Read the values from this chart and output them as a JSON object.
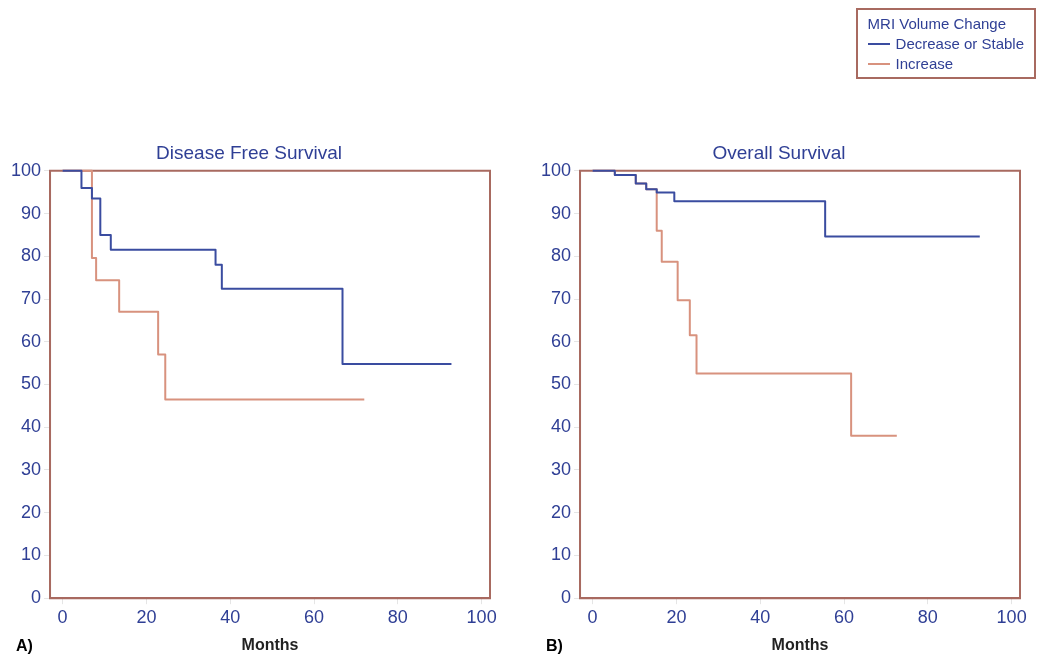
{
  "chart_data": [
    {
      "type": "step",
      "title": "Disease Free Survival",
      "xlabel": "Months",
      "xlim": [
        -3,
        102
      ],
      "xticks": [
        0,
        20,
        40,
        60,
        80,
        100
      ],
      "ylim": [
        0,
        100
      ],
      "yticks": [
        0,
        10,
        20,
        30,
        40,
        50,
        60,
        70,
        80,
        90,
        100
      ],
      "grid": false,
      "legend": "top right",
      "legend_title": "MRI Volume Change",
      "annotations": [
        "A)"
      ],
      "series": [
        {
          "name": "Decrease or Stable",
          "color": "#3a4ca0",
          "x": [
            0,
            4.5,
            7,
            9,
            11.5,
            20.5,
            36.5,
            38,
            66.8,
            92.8
          ],
          "values": [
            100,
            96,
            93.5,
            85,
            81.5,
            81.5,
            78,
            72.4,
            54.8,
            54.8
          ]
        },
        {
          "name": "Increase",
          "color": "#d8927e",
          "x": [
            0,
            7,
            8,
            13.5,
            22.8,
            24.5,
            72
          ],
          "values": [
            100,
            79.6,
            74.4,
            67,
            57,
            46.5,
            46.5
          ]
        }
      ]
    },
    {
      "type": "step",
      "title": "Overall Survival",
      "xlabel": "Months",
      "xlim": [
        -3,
        102
      ],
      "xticks": [
        0,
        20,
        40,
        60,
        80,
        100
      ],
      "ylim": [
        0,
        100
      ],
      "yticks": [
        0,
        10,
        20,
        30,
        40,
        50,
        60,
        70,
        80,
        90,
        100
      ],
      "grid": false,
      "legend": false,
      "annotations": [
        "B)"
      ],
      "series": [
        {
          "color": "#3a4ca0",
          "x": [
            0,
            5.3,
            10.3,
            12.8,
            15.3,
            19.5,
            55.5,
            92.4
          ],
          "values": [
            100,
            99,
            97,
            95.7,
            94.9,
            92.9,
            84.6,
            84.6
          ]
        },
        {
          "color": "#d8927e",
          "x": [
            0,
            5.3,
            10.3,
            12.8,
            15.3,
            16.5,
            20.3,
            23.2,
            24.8,
            61.7,
            72.6
          ],
          "values": [
            100,
            99,
            97,
            95.7,
            86,
            78.7,
            69.7,
            61.5,
            52.6,
            38,
            38
          ]
        }
      ]
    }
  ]
}
